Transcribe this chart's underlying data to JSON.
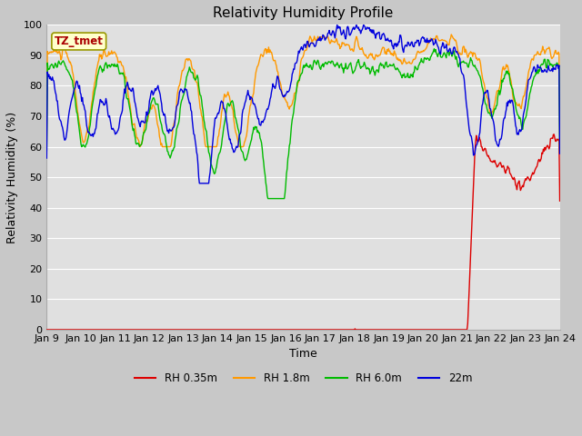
{
  "title": "Relativity Humidity Profile",
  "ylabel": "Relativity Humidity (%)",
  "xlabel": "Time",
  "ylim": [
    0,
    100
  ],
  "yticks": [
    0,
    10,
    20,
    30,
    40,
    50,
    60,
    70,
    80,
    90,
    100
  ],
  "xtick_labels": [
    "Jan 9",
    "Jan 10",
    "Jan 11",
    "Jan 12",
    "Jan 13",
    "Jan 14",
    "Jan 15",
    "Jan 16",
    "Jan 17",
    "Jan 18",
    "Jan 19",
    "Jan 20",
    "Jan 21",
    "Jan 22",
    "Jan 23",
    "Jan 24"
  ],
  "annotation_text": "TZ_tmet",
  "annotation_color": "#aa0000",
  "annotation_bg": "#ffffcc",
  "annotation_border": "#999900",
  "line_colors": {
    "RH 0.35m": "#dd0000",
    "RH 1.8m": "#ff9900",
    "RH 6.0m": "#00bb00",
    "22m": "#0000dd"
  },
  "legend_labels": [
    "RH 0.35m",
    "RH 1.8m",
    "RH 6.0m",
    "22m"
  ],
  "fig_bg_color": "#c8c8c8",
  "plot_bg": "#e0e0e0",
  "grid_color": "#ffffff",
  "title_fontsize": 11,
  "label_fontsize": 9,
  "tick_fontsize": 8
}
